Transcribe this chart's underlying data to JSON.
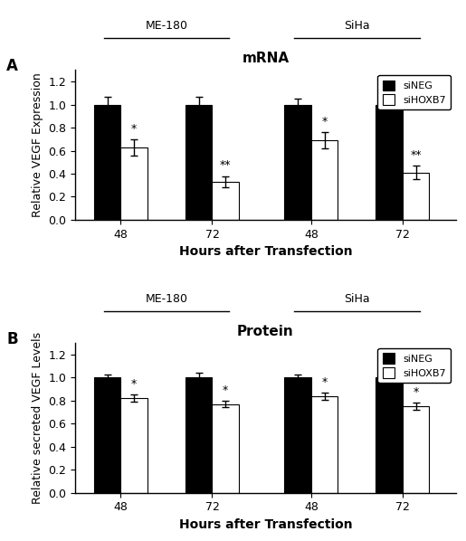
{
  "panel_A": {
    "title": "mRNA",
    "ylabel": "Relative VEGF Expression",
    "xlabel": "Hours after Transfection",
    "groups": [
      "48",
      "72",
      "48",
      "72"
    ],
    "siNEG_values": [
      1.0,
      1.0,
      1.0,
      1.0
    ],
    "siNEG_errors": [
      0.07,
      0.07,
      0.05,
      0.07
    ],
    "siHOXB7_values": [
      0.63,
      0.33,
      0.69,
      0.41
    ],
    "siHOXB7_errors": [
      0.07,
      0.05,
      0.07,
      0.06
    ],
    "significance": [
      "*",
      "**",
      "*",
      "**"
    ],
    "ylim": [
      0,
      1.3
    ],
    "yticks": [
      0.0,
      0.2,
      0.4,
      0.6,
      0.8,
      1.0,
      1.2
    ]
  },
  "panel_B": {
    "title": "Protein",
    "ylabel": "Relative secreted VEGF Levels",
    "xlabel": "Hours after Transfection",
    "groups": [
      "48",
      "72",
      "48",
      "72"
    ],
    "siNEG_values": [
      1.0,
      1.0,
      1.0,
      1.0
    ],
    "siNEG_errors": [
      0.03,
      0.04,
      0.03,
      0.04
    ],
    "siHOXB7_values": [
      0.82,
      0.77,
      0.84,
      0.75
    ],
    "siHOXB7_errors": [
      0.03,
      0.03,
      0.03,
      0.03
    ],
    "significance": [
      "*",
      "*",
      "*",
      "*"
    ],
    "ylim": [
      0,
      1.3
    ],
    "yticks": [
      0.0,
      0.2,
      0.4,
      0.6,
      0.8,
      1.0,
      1.2
    ]
  },
  "bar_width": 0.35,
  "sineg_color": "#000000",
  "sihoxb7_color": "#ffffff",
  "label_sineg": "siNEG",
  "label_sihoxb7": "siHOXB7",
  "group_positions": [
    1.0,
    2.2,
    3.5,
    4.7
  ],
  "me180_label": "ME-180",
  "siha_label": "SiHa"
}
